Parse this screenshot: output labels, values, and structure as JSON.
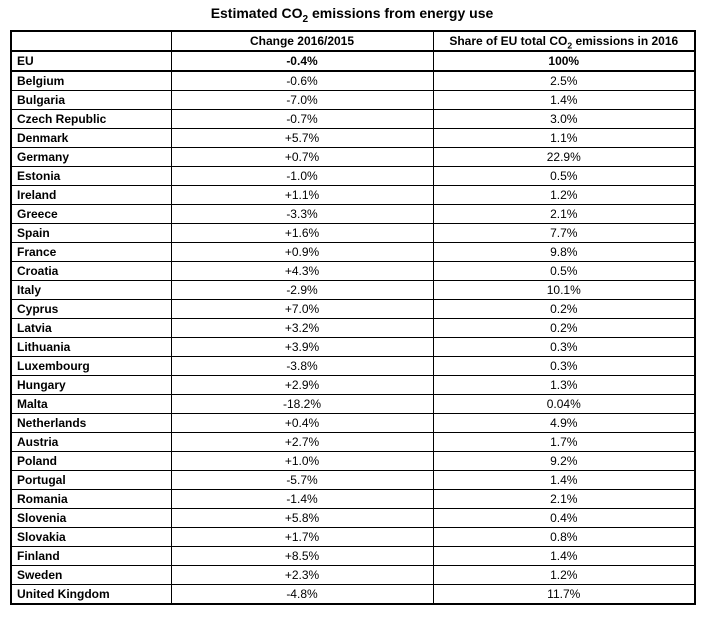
{
  "title": {
    "pre": "Estimated CO",
    "sub": "2",
    "post": " emissions from energy use"
  },
  "table": {
    "col1_header": "",
    "col2_header": "Change 2016/2015",
    "col3_header": {
      "pre": "Share of EU total CO",
      "sub": "2",
      "post": " emissions in 2016"
    },
    "bold_row": "EU"
  },
  "colors": {
    "text": "#000000",
    "background": "#ffffff",
    "border": "#000000"
  },
  "chart_data": {
    "type": "table",
    "title": "Estimated CO₂ emissions from energy use",
    "columns": [
      "",
      "Change 2016/2015",
      "Share of EU total CO₂ emissions in 2016"
    ],
    "rows": [
      [
        "EU",
        "-0.4%",
        "100%"
      ],
      [
        "Belgium",
        "-0.6%",
        "2.5%"
      ],
      [
        "Bulgaria",
        "-7.0%",
        "1.4%"
      ],
      [
        "Czech Republic",
        "-0.7%",
        "3.0%"
      ],
      [
        "Denmark",
        "+5.7%",
        "1.1%"
      ],
      [
        "Germany",
        "+0.7%",
        "22.9%"
      ],
      [
        "Estonia",
        "-1.0%",
        "0.5%"
      ],
      [
        "Ireland",
        "+1.1%",
        "1.2%"
      ],
      [
        "Greece",
        "-3.3%",
        "2.1%"
      ],
      [
        "Spain",
        "+1.6%",
        "7.7%"
      ],
      [
        "France",
        "+0.9%",
        "9.8%"
      ],
      [
        "Croatia",
        "+4.3%",
        "0.5%"
      ],
      [
        "Italy",
        "-2.9%",
        "10.1%"
      ],
      [
        "Cyprus",
        "+7.0%",
        "0.2%"
      ],
      [
        "Latvia",
        "+3.2%",
        "0.2%"
      ],
      [
        "Lithuania",
        "+3.9%",
        "0.3%"
      ],
      [
        "Luxembourg",
        "-3.8%",
        "0.3%"
      ],
      [
        "Hungary",
        "+2.9%",
        "1.3%"
      ],
      [
        "Malta",
        "-18.2%",
        "0.04%"
      ],
      [
        "Netherlands",
        "+0.4%",
        "4.9%"
      ],
      [
        "Austria",
        "+2.7%",
        "1.7%"
      ],
      [
        "Poland",
        "+1.0%",
        "9.2%"
      ],
      [
        "Portugal",
        "-5.7%",
        "1.4%"
      ],
      [
        "Romania",
        "-1.4%",
        "2.1%"
      ],
      [
        "Slovenia",
        "+5.8%",
        "0.4%"
      ],
      [
        "Slovakia",
        "+1.7%",
        "0.8%"
      ],
      [
        "Finland",
        "+8.5%",
        "1.4%"
      ],
      [
        "Sweden",
        "+2.3%",
        "1.2%"
      ],
      [
        "United Kingdom",
        "-4.8%",
        "11.7%"
      ]
    ]
  }
}
